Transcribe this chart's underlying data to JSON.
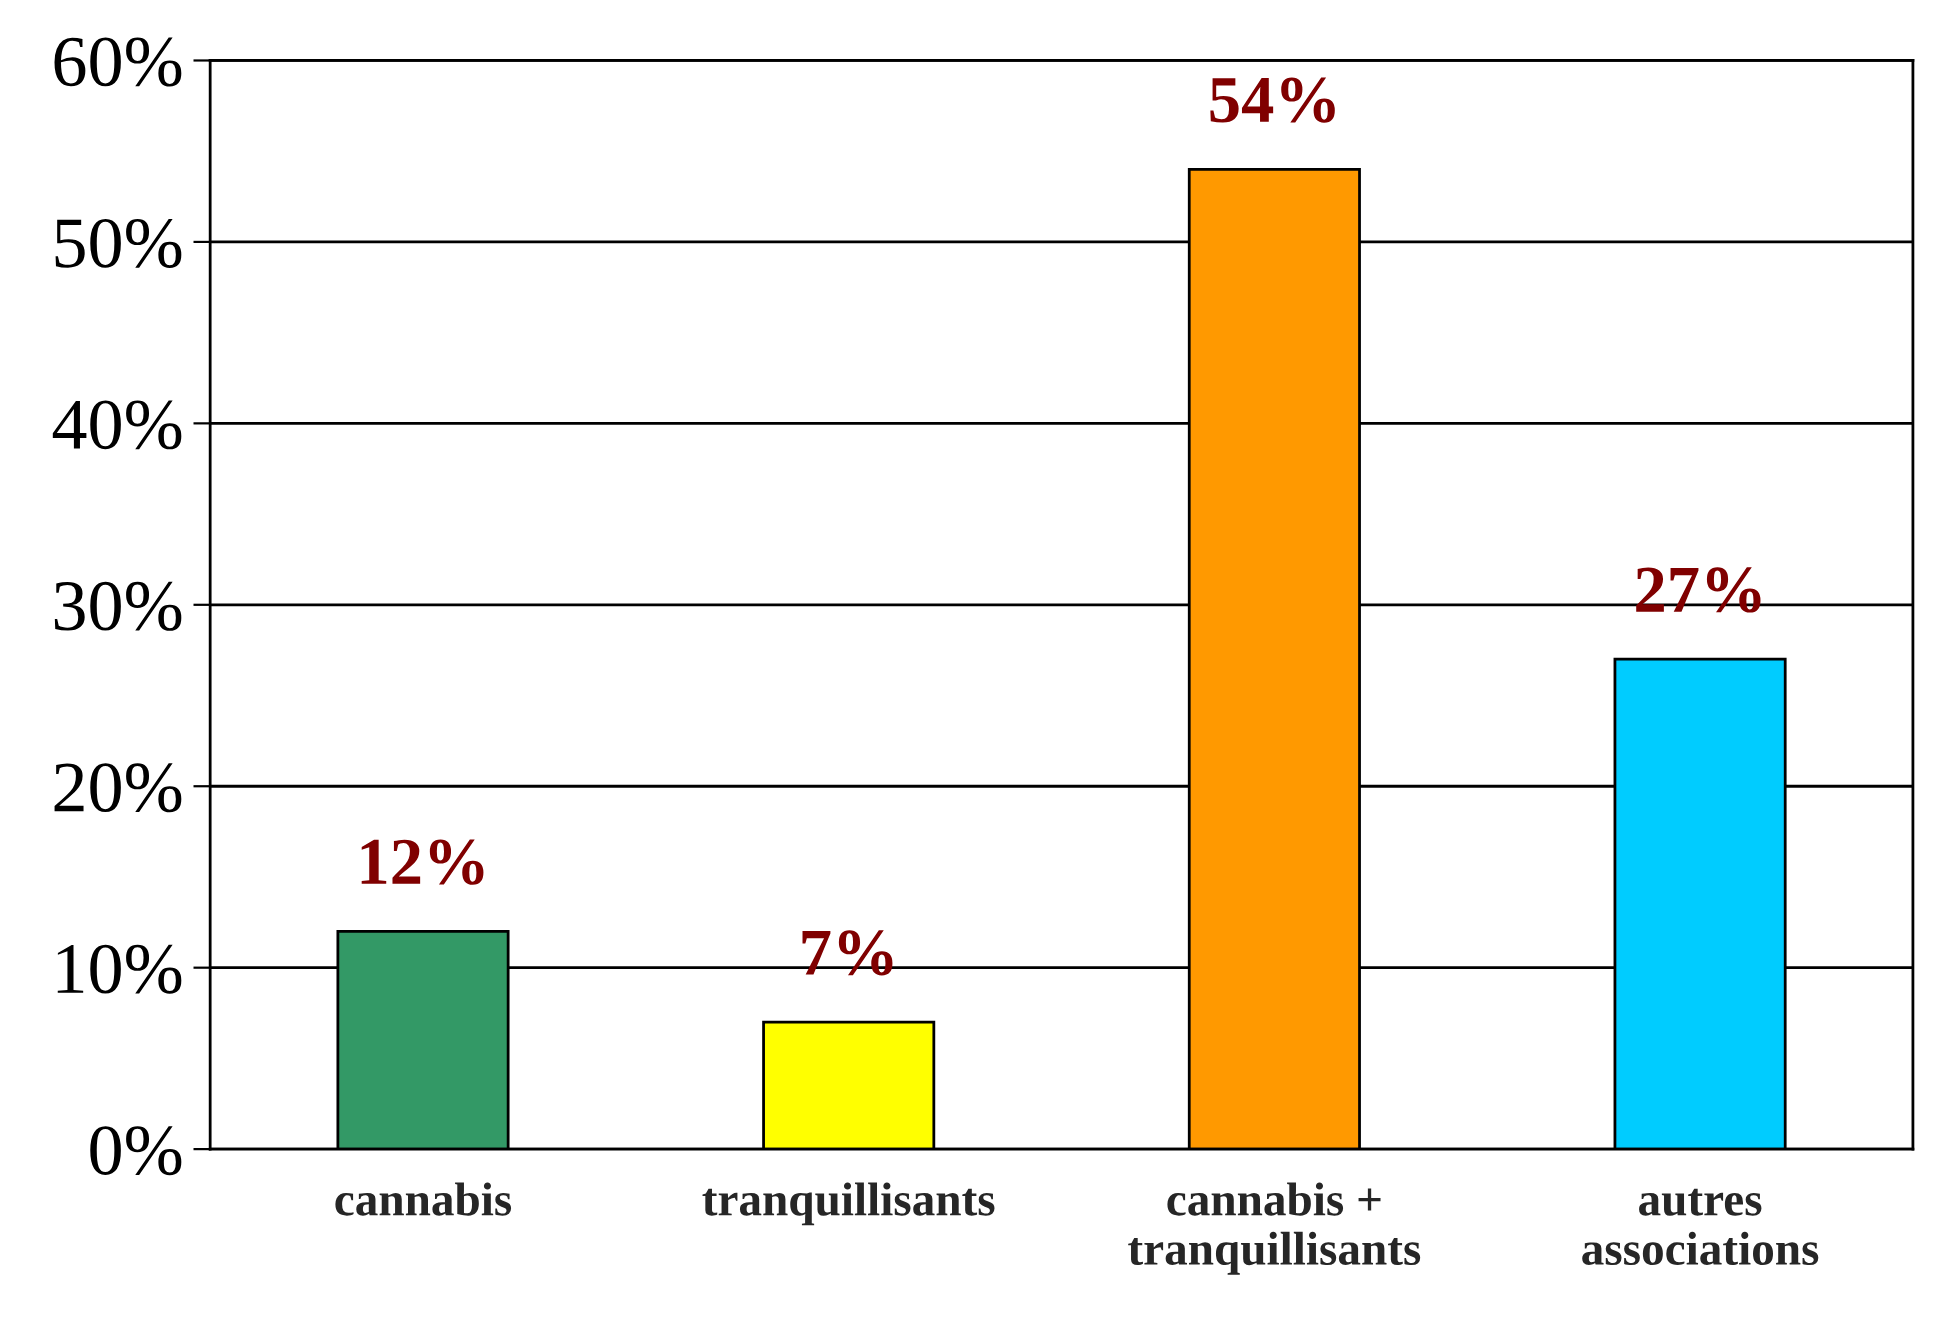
{
  "chart_data": {
    "type": "bar",
    "categories": [
      "cannabis",
      "tranquillisants",
      "cannabis +\ntranquillisants",
      "autres\nassociations"
    ],
    "values": [
      12,
      7,
      54,
      27
    ],
    "colors": [
      "#339966",
      "#ffff00",
      "#ff9900",
      "#00ccff"
    ],
    "value_labels": [
      "12%",
      "7%",
      "54%",
      "27%"
    ],
    "ylim": [
      0,
      60
    ],
    "yticks": [
      {
        "value": 0,
        "label": "0%"
      },
      {
        "value": 10,
        "label": "10%"
      },
      {
        "value": 20,
        "label": "20%"
      },
      {
        "value": 30,
        "label": "30%"
      },
      {
        "value": 40,
        "label": "40%"
      },
      {
        "value": 50,
        "label": "50%"
      },
      {
        "value": 60,
        "label": "60%"
      }
    ],
    "grid": "y"
  }
}
